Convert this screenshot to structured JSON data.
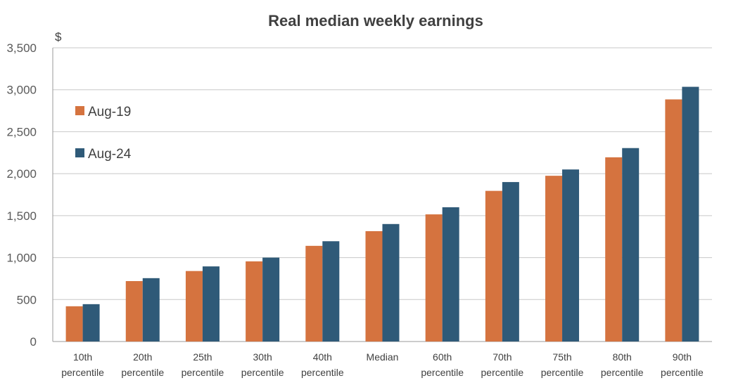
{
  "chart_data": {
    "type": "bar",
    "title": "Real median weekly earnings",
    "ylabel": "$",
    "xlabel": "",
    "ylim": [
      0,
      3500
    ],
    "yticks": [
      "0",
      "500",
      "1,000",
      "1,500",
      "2,000",
      "2,500",
      "3,000",
      "3,500"
    ],
    "ytick_values": [
      0,
      500,
      1000,
      1500,
      2000,
      2500,
      3000,
      3500
    ],
    "grid": true,
    "legend_position": "left",
    "categories": [
      [
        "10th",
        "percentile"
      ],
      [
        "20th",
        "percentile"
      ],
      [
        "25th",
        "percentile"
      ],
      [
        "30th",
        "percentile"
      ],
      [
        "40th",
        "percentile"
      ],
      [
        "Median"
      ],
      [
        "60th",
        "percentile"
      ],
      [
        "70th",
        "percentile"
      ],
      [
        "75th",
        "percentile"
      ],
      [
        "80th",
        "percentile"
      ],
      [
        "90th",
        "percentile"
      ]
    ],
    "series": [
      {
        "name": "Aug-19",
        "color": "#D5733F",
        "values": [
          420,
          720,
          840,
          955,
          1140,
          1315,
          1515,
          1795,
          1975,
          2195,
          2885
        ]
      },
      {
        "name": "Aug-24",
        "color": "#2F5A78",
        "values": [
          445,
          755,
          895,
          1000,
          1195,
          1400,
          1600,
          1900,
          2050,
          2305,
          3035
        ]
      }
    ]
  }
}
